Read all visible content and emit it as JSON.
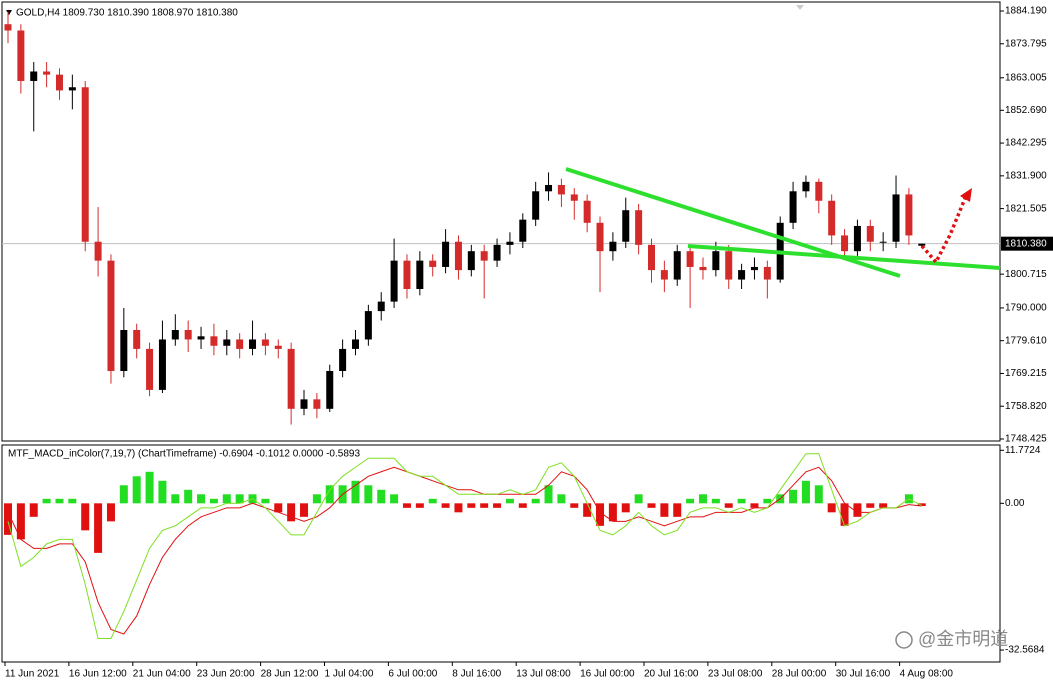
{
  "watermark": "@金市明道",
  "chart_data": [
    {
      "type": "candlestick",
      "title": "GOLD,H4  1809.730 1810.390 1808.970 1810.380",
      "up_color": "#000000",
      "down_color": "#d42a2a",
      "open": [
        1880,
        1878,
        1862,
        1865,
        1864,
        1859,
        1860,
        1811,
        1805,
        1770,
        1783,
        1777,
        1764,
        1780,
        1783,
        1780,
        1781,
        1778,
        1780,
        1777,
        1780,
        1778,
        1777,
        1758,
        1761,
        1758,
        1770,
        1777,
        1780,
        1789,
        1792,
        1805,
        1796,
        1805,
        1803,
        1811,
        1802,
        1808,
        1805,
        1810,
        1811,
        1818,
        1827,
        1829,
        1826,
        1824,
        1817,
        1808,
        1811,
        1821,
        1810,
        1802,
        1799,
        1808,
        1803,
        1802,
        1808,
        1799,
        1802,
        1803,
        1799,
        1817,
        1827,
        1830,
        1824,
        1813,
        1808,
        1816,
        1811,
        1811,
        1826,
        1809.73
      ],
      "high": [
        1884,
        1880,
        1868,
        1868,
        1866,
        1864,
        1862,
        1822,
        1807,
        1790,
        1785,
        1779,
        1786,
        1788,
        1786,
        1784,
        1785,
        1783,
        1782,
        1786,
        1782,
        1780,
        1779,
        1764,
        1763,
        1772,
        1780,
        1783,
        1791,
        1795,
        1812,
        1807,
        1808,
        1807,
        1815,
        1813,
        1810,
        1810,
        1812,
        1814,
        1820,
        1830,
        1833,
        1831,
        1828,
        1826,
        1819,
        1814,
        1825,
        1823,
        1812,
        1805,
        1810,
        1810,
        1806,
        1811,
        1810,
        1804,
        1806,
        1805,
        1819,
        1830,
        1832,
        1831,
        1826,
        1815,
        1818,
        1818,
        1814,
        1832,
        1828,
        1810.39
      ],
      "low": [
        1874,
        1858,
        1846,
        1860,
        1856,
        1853,
        1808,
        1800,
        1766,
        1768,
        1774,
        1762,
        1763,
        1778,
        1776,
        1777,
        1775,
        1775,
        1774,
        1775,
        1775,
        1774,
        1753,
        1756,
        1755,
        1757,
        1768,
        1775,
        1778,
        1786,
        1790,
        1793,
        1794,
        1800,
        1801,
        1799,
        1800,
        1793,
        1803,
        1807,
        1809,
        1816,
        1824,
        1822,
        1818,
        1814,
        1795,
        1805,
        1809,
        1807,
        1798,
        1795,
        1797,
        1790,
        1799,
        1800,
        1796,
        1796,
        1799,
        1793,
        1798,
        1815,
        1825,
        1820,
        1810,
        1806,
        1806,
        1808,
        1808,
        1809,
        1810,
        1808.97
      ],
      "close": [
        1878,
        1862,
        1865,
        1864,
        1859,
        1860,
        1811,
        1805,
        1770,
        1783,
        1777,
        1764,
        1780,
        1783,
        1780,
        1781,
        1778,
        1780,
        1777,
        1780,
        1778,
        1777,
        1758,
        1761,
        1758,
        1770,
        1777,
        1780,
        1789,
        1792,
        1805,
        1796,
        1805,
        1803,
        1811,
        1802,
        1808,
        1805,
        1810,
        1811,
        1818,
        1827,
        1829,
        1826,
        1824,
        1817,
        1808,
        1811,
        1821,
        1810,
        1802,
        1799,
        1808,
        1803,
        1802,
        1808,
        1799,
        1802,
        1803,
        1799,
        1817,
        1827,
        1830,
        1824,
        1813,
        1808,
        1816,
        1811,
        1811,
        1826,
        1813,
        1810.38
      ],
      "ylim": [
        1747.79,
        1886.41
      ],
      "yticks": [
        {
          "value": 1884.19,
          "label": "1884.190"
        },
        {
          "value": 1873.795,
          "label": "1873.795"
        },
        {
          "value": 1863.005,
          "label": "1863.005"
        },
        {
          "value": 1852.69,
          "label": "1852.690"
        },
        {
          "value": 1842.295,
          "label": "1842.295"
        },
        {
          "value": 1831.9,
          "label": "1831.900"
        },
        {
          "value": 1821.505,
          "label": "1821.505"
        },
        {
          "value": 1800.715,
          "label": "1800.715"
        },
        {
          "value": 1790.0,
          "label": "1790.000"
        },
        {
          "value": 1779.61,
          "label": "1779.610"
        },
        {
          "value": 1769.215,
          "label": "1769.215"
        },
        {
          "value": 1758.82,
          "label": "1758.820"
        },
        {
          "value": 1748.425,
          "label": "1748.425"
        }
      ],
      "current_price": {
        "value": 1810.38,
        "label": "1810.380"
      },
      "x_labels": [
        "11 Jun 2021",
        "16 Jun 12:00",
        "21 Jun 04:00",
        "23 Jun 20:00",
        "28 Jun 12:00",
        "1 Jul 04:00",
        "6 Jul 00:00",
        "8 Jul 16:00",
        "13 Jul 08:00",
        "16 Jul 00:00",
        "20 Jul 16:00",
        "23 Jul 08:00",
        "28 Jul 00:00",
        "30 Jul 16:00",
        "4 Aug 08:00"
      ]
    },
    {
      "type": "macd",
      "title": "MTF_MACD_inColor(7,19,7) (ChartTimeframe) -0.6904 -0.1012 0.0000 -0.5893",
      "up_color": "#22dd22",
      "down_color": "#e01010",
      "histogram": [
        -7,
        -8,
        -3,
        1,
        1,
        1,
        -6,
        -11,
        -4,
        4,
        6,
        7,
        5,
        2,
        3,
        2,
        1,
        2,
        2,
        2,
        1,
        -2,
        -4,
        -3,
        2,
        4,
        4,
        5,
        4,
        3,
        2,
        -1,
        -1,
        1,
        -1,
        -2,
        -1,
        -1,
        -1,
        1,
        -1,
        1,
        4,
        2,
        -1,
        -3,
        -5,
        -4,
        -2,
        2,
        -1,
        -3,
        -3,
        1,
        2,
        1,
        -1,
        1,
        -1,
        1,
        2,
        3,
        5,
        4,
        -2,
        -5,
        -3,
        -1,
        -1,
        0,
        2,
        -0.6
      ],
      "lines": [
        {
          "color": "#e01010",
          "values": [
            -2,
            -8,
            -10,
            -10,
            -9,
            -9,
            -13,
            -22,
            -28,
            -29,
            -25,
            -18,
            -12,
            -8,
            -5,
            -3,
            -2,
            -1,
            -1,
            0,
            -1,
            -2,
            -3,
            -4,
            -3,
            -1,
            2,
            4,
            6,
            7,
            8,
            7,
            6,
            5,
            4,
            3,
            3,
            2,
            2,
            2,
            2,
            2,
            4,
            7,
            6,
            3,
            -2,
            -4,
            -4,
            -3,
            -4,
            -5,
            -4,
            -3,
            -3,
            -2,
            -2,
            -2,
            -1,
            -1,
            1,
            4,
            7,
            8,
            5,
            0,
            -2,
            -2,
            -1,
            -1,
            -0.3,
            -0.6
          ]
        },
        {
          "color": "#7ee021",
          "values": [
            -4,
            -14,
            -12,
            -9,
            -8,
            -8,
            -18,
            -30,
            -30,
            -24,
            -17,
            -10,
            -6,
            -5,
            -3,
            -1,
            -1,
            0,
            0,
            1,
            -1,
            -4,
            -7,
            -7,
            -2,
            3,
            6,
            8,
            10,
            10,
            10,
            7,
            6,
            6,
            4,
            2,
            2,
            2,
            2,
            3,
            2,
            3,
            8,
            9,
            6,
            0,
            -6,
            -7,
            -5,
            -2,
            -5,
            -7,
            -6,
            -2,
            -1,
            -1,
            -2,
            -1,
            -2,
            -1,
            3,
            7,
            11,
            11,
            3,
            -5,
            -4,
            -2,
            -1,
            -1,
            1,
            -0.5
          ]
        }
      ],
      "ylim": [
        -35,
        12.5
      ],
      "yticks": [
        11.7724,
        {
          "value": 0,
          "label": "0.00"
        },
        -32.5684
      ]
    }
  ]
}
